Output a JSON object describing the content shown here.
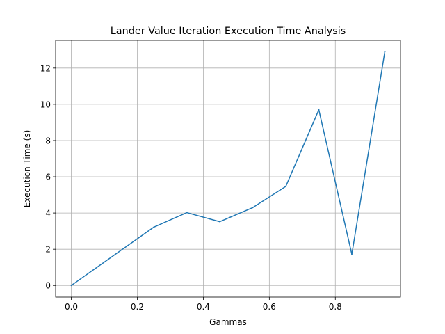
{
  "chart_data": {
    "type": "line",
    "title": "Lander Value Iteration Execution Time Analysis",
    "xlabel": "Gammas",
    "ylabel": "Execution Time (s)",
    "xlim": [
      -0.0475,
      0.9975
    ],
    "ylim": [
      -0.644,
      13.53
    ],
    "x_ticks": [
      0.0,
      0.2,
      0.4,
      0.6,
      0.8
    ],
    "x_tick_labels": [
      "0.0",
      "0.2",
      "0.4",
      "0.6",
      "0.8"
    ],
    "y_ticks": [
      0,
      2,
      4,
      6,
      8,
      10,
      12
    ],
    "y_tick_labels": [
      "0",
      "2",
      "4",
      "6",
      "8",
      "10",
      "12"
    ],
    "grid": true,
    "series": [
      {
        "color": "#1f77b4",
        "x": [
          0.0,
          0.25,
          0.35,
          0.45,
          0.55,
          0.65,
          0.75,
          0.85,
          0.95
        ],
        "y": [
          0.0,
          3.22,
          4.02,
          3.52,
          4.3,
          5.47,
          9.7,
          1.72,
          12.9
        ]
      }
    ]
  }
}
